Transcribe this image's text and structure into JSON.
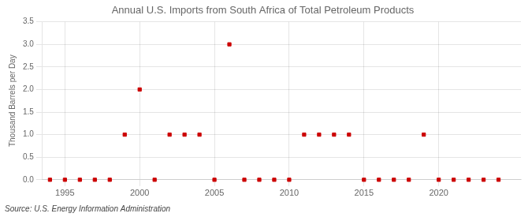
{
  "chart_data": {
    "type": "scatter",
    "title": "Annual U.S. Imports from South Africa of Total Petroleum Products",
    "ylabel": "Thousand Barrels per Day",
    "annotations": [
      "Source: U.S. Energy Information Administration"
    ],
    "x": [
      1994,
      1995,
      1996,
      1997,
      1998,
      1999,
      2000,
      2001,
      2002,
      2003,
      2004,
      2005,
      2006,
      2007,
      2008,
      2009,
      2010,
      2011,
      2012,
      2013,
      2014,
      2015,
      2016,
      2017,
      2018,
      2019,
      2020,
      2021,
      2022,
      2023,
      2024
    ],
    "values": [
      0.0,
      0.0,
      0.0,
      0.0,
      0.0,
      1.0,
      2.0,
      0.0,
      1.0,
      1.0,
      1.0,
      0.0,
      3.0,
      0.0,
      0.0,
      0.0,
      0.0,
      1.0,
      1.0,
      1.0,
      1.0,
      0.0,
      0.0,
      0.0,
      0.0,
      1.0,
      0.0,
      0.0,
      0.0,
      0.0,
      0.0
    ],
    "color": "#CC0000",
    "marker": "square",
    "xlim": [
      1993.5,
      2025.5
    ],
    "xticks": [
      1995,
      2000,
      2005,
      2010,
      2015,
      2020
    ],
    "ylim": [
      0.0,
      3.5
    ],
    "yticks": [
      {
        "value": 0.0,
        "label": "0.0"
      },
      0.5,
      {
        "value": 1.0,
        "label": "1.0"
      },
      1.5,
      {
        "value": 2.0,
        "label": "2.0"
      },
      2.5,
      {
        "value": 3.0,
        "label": "3.0"
      },
      3.5
    ],
    "grid": true
  }
}
